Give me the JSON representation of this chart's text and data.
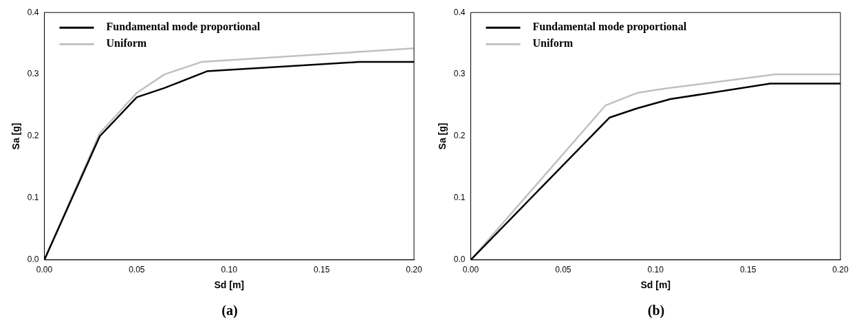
{
  "chart_data": [
    {
      "type": "line",
      "xlabel": "Sd [m]",
      "ylabel": "Sa [g]",
      "annotations": [
        "(a)"
      ],
      "legend": "top left",
      "grid": false,
      "marker": "none",
      "xlim": [
        0,
        0.2
      ],
      "ylim": [
        0,
        0.4
      ],
      "xticks": [
        {
          "value": 0,
          "label": "0.00"
        },
        {
          "value": 0.05,
          "label": "0.05"
        },
        {
          "value": 0.1,
          "label": "0.10"
        },
        {
          "value": 0.15,
          "label": "0.15"
        },
        {
          "value": 0.2,
          "label": "0.20"
        }
      ],
      "yticks": [
        {
          "value": 0,
          "label": "0.0"
        },
        0.1,
        0.2,
        0.3,
        0.4
      ],
      "series": [
        {
          "name": "Fundamental mode proportional",
          "color": "#000000",
          "x": [
            0,
            0.03,
            0.05,
            0.065,
            0.088,
            0.17,
            0.2
          ],
          "values": [
            0,
            0.2,
            0.263,
            0.278,
            0.305,
            0.32,
            0.32
          ]
        },
        {
          "name": "Uniform",
          "color": "#c0c0c0",
          "x": [
            0,
            0.03,
            0.05,
            0.065,
            0.085,
            0.2
          ],
          "values": [
            0,
            0.205,
            0.27,
            0.3,
            0.32,
            0.342
          ]
        }
      ]
    },
    {
      "type": "line",
      "xlabel": "Sd [m]",
      "ylabel": "Sa [g]",
      "annotations": [
        "(b)"
      ],
      "legend": "top left",
      "grid": false,
      "marker": "none",
      "xlim": [
        0,
        0.2
      ],
      "ylim": [
        0,
        0.4
      ],
      "xticks": [
        {
          "value": 0,
          "label": "0.00"
        },
        {
          "value": 0.05,
          "label": "0.05"
        },
        {
          "value": 0.1,
          "label": "0.10"
        },
        {
          "value": 0.15,
          "label": "0.15"
        },
        {
          "value": 0.2,
          "label": "0.20"
        }
      ],
      "yticks": [
        {
          "value": 0,
          "label": "0.0"
        },
        0.1,
        0.2,
        0.3,
        0.4
      ],
      "series": [
        {
          "name": "Fundamental mode proportional",
          "color": "#000000",
          "x": [
            0,
            0.075,
            0.09,
            0.108,
            0.162,
            0.2
          ],
          "values": [
            0,
            0.23,
            0.245,
            0.26,
            0.285,
            0.285
          ]
        },
        {
          "name": "Uniform",
          "color": "#c0c0c0",
          "x": [
            0,
            0.073,
            0.09,
            0.105,
            0.165,
            0.2
          ],
          "values": [
            0,
            0.25,
            0.27,
            0.277,
            0.3,
            0.3
          ]
        }
      ]
    }
  ]
}
